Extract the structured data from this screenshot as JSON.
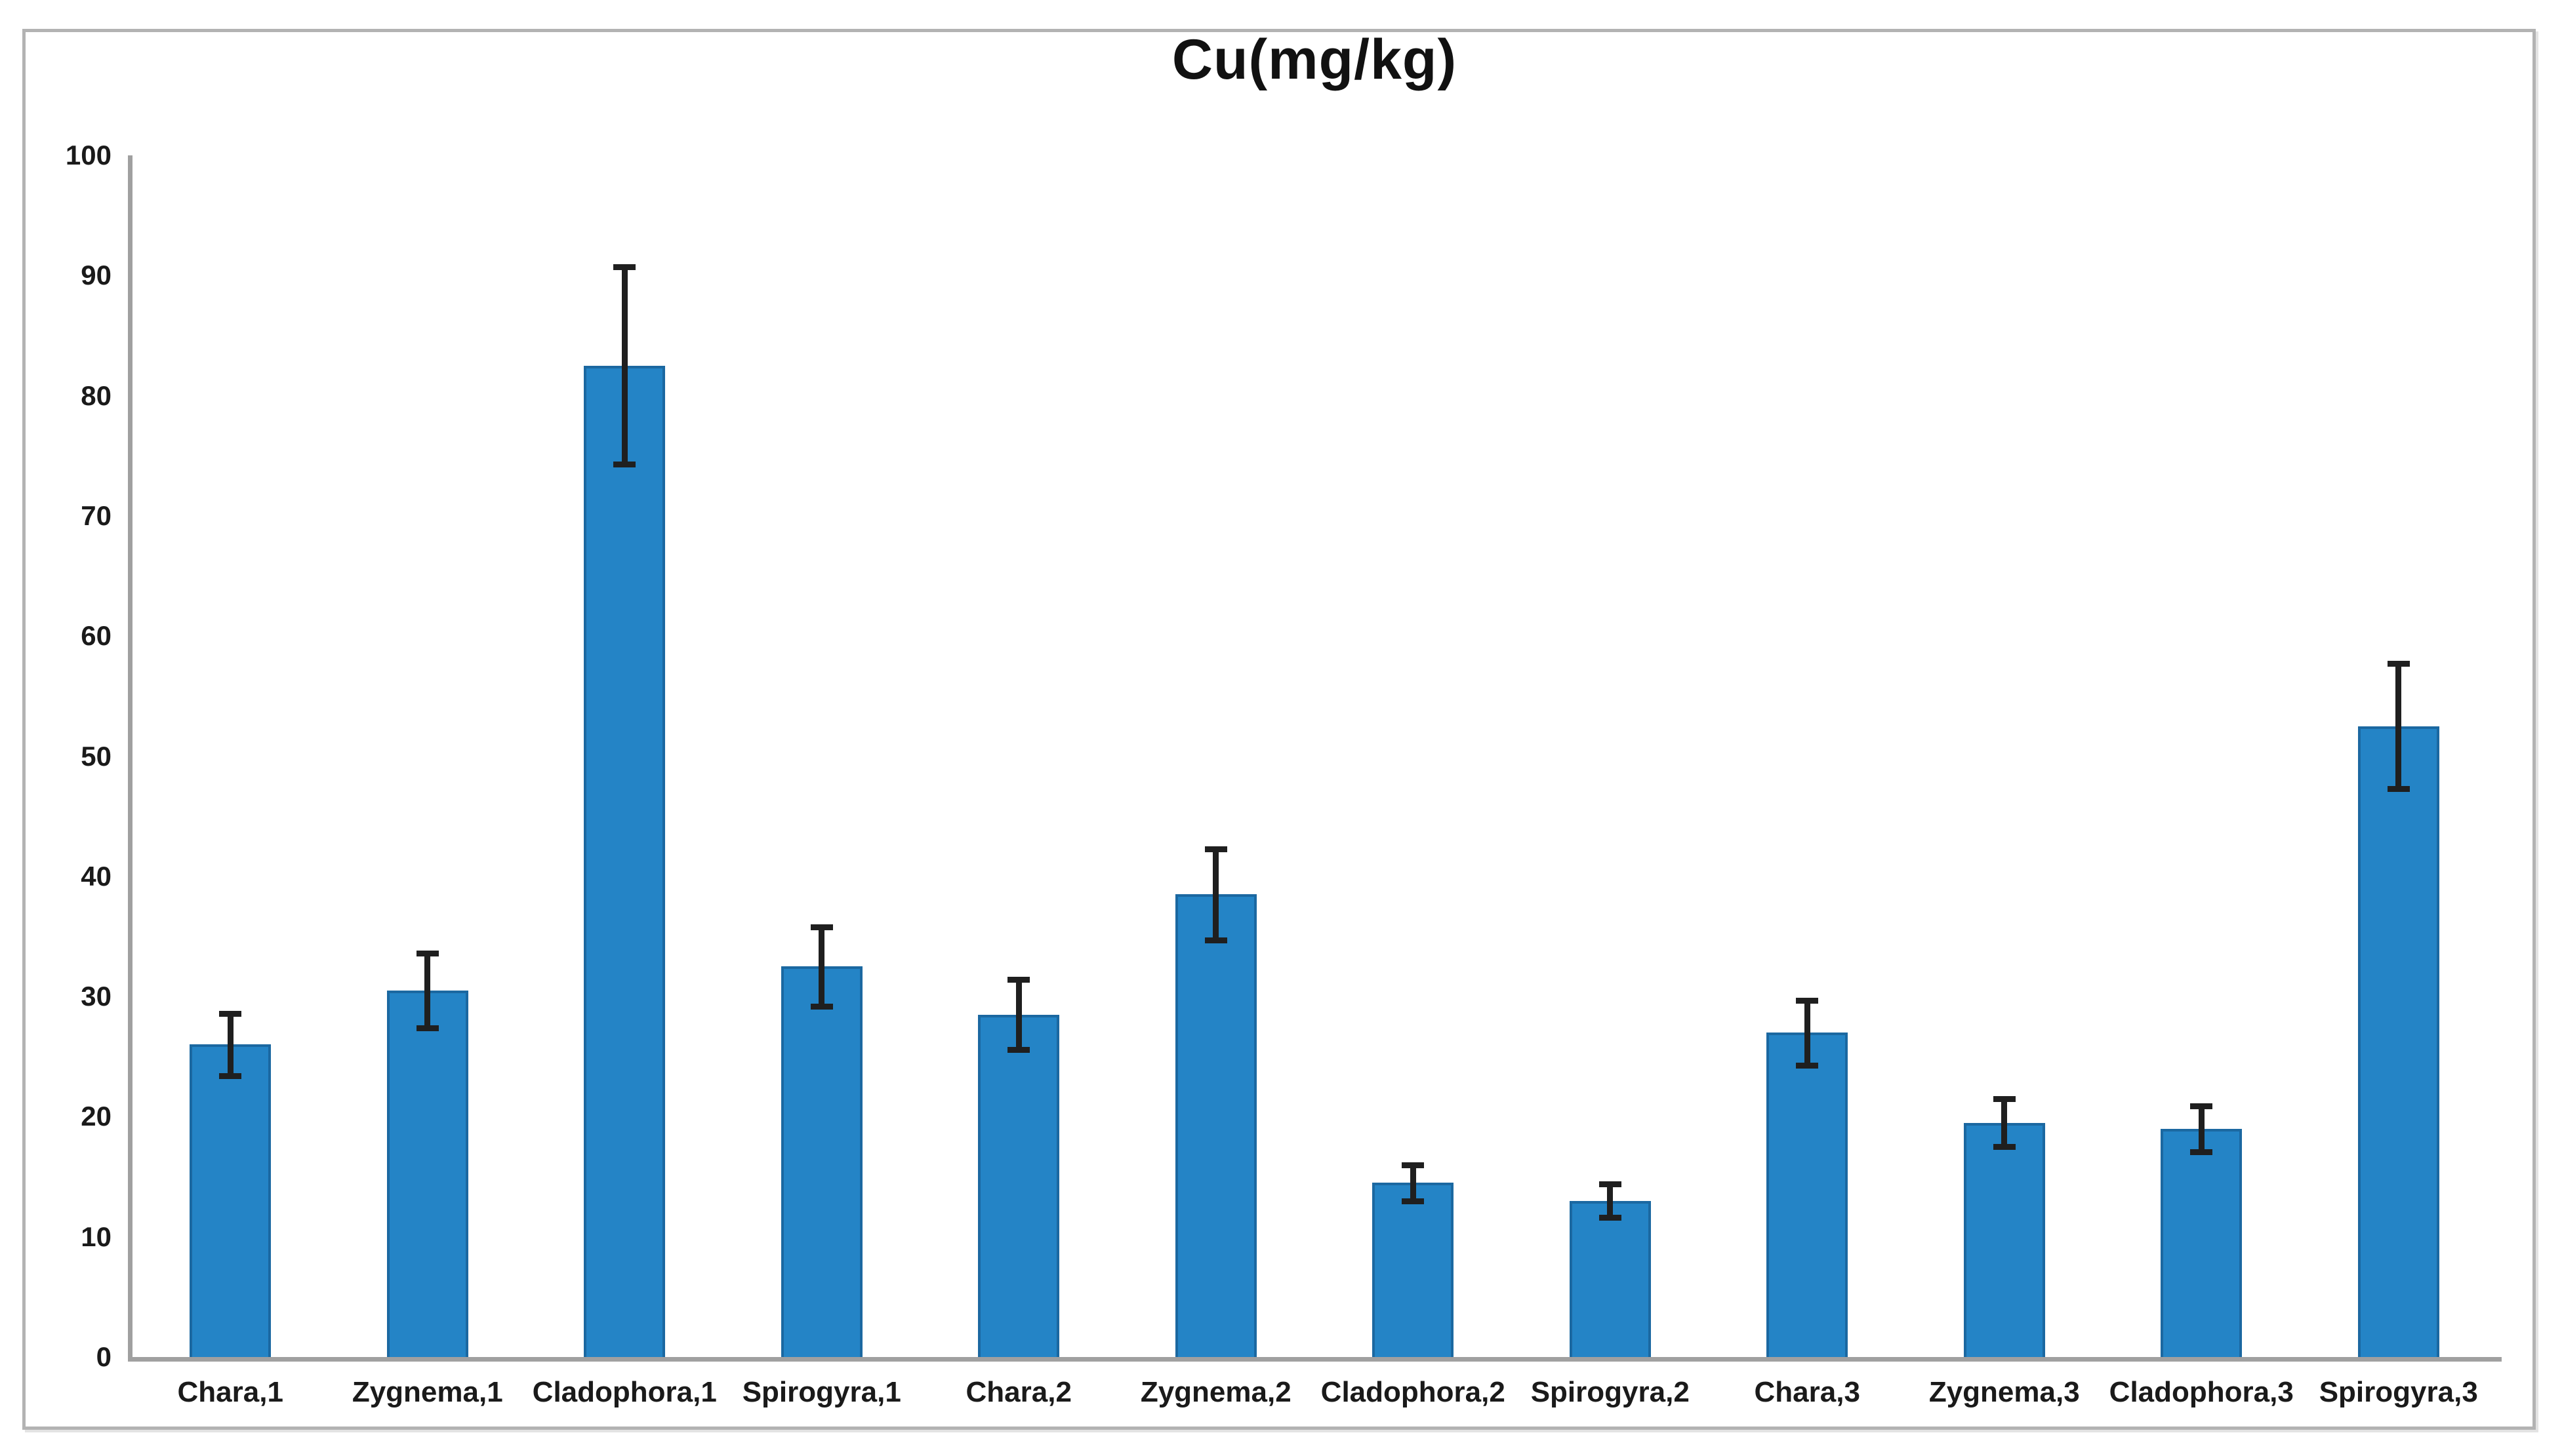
{
  "chart_data": {
    "type": "bar",
    "title": "Cu(mg/kg)",
    "categories": [
      "Chara,1",
      "Zygnema,1",
      "Cladophora,1",
      "Spirogyra,1",
      "Chara,2",
      "Zygnema,2",
      "Cladophora,2",
      "Spirogyra,2",
      "Chara,3",
      "Zygnema,3",
      "Cladophora,3",
      "Spirogyra,3"
    ],
    "values": [
      26,
      30.5,
      82.5,
      32.5,
      28.5,
      38.5,
      14.5,
      13,
      27,
      19.5,
      19,
      52.5
    ],
    "errors": [
      2.6,
      3.1,
      8.2,
      3.3,
      2.9,
      3.8,
      1.5,
      1.4,
      2.7,
      2.0,
      1.9,
      5.2
    ],
    "xlabel": "",
    "ylabel": "",
    "ylim": [
      0,
      100
    ],
    "yticks": [
      0,
      10,
      20,
      30,
      40,
      50,
      60,
      70,
      80,
      90,
      100
    ],
    "grid": false,
    "legend": null,
    "colors": {
      "bar_fill": "#2484C6",
      "bar_border": "#1B68A1",
      "error_bar": "#1f1f1f",
      "axis_line": "#a0a0a0",
      "frame_border": "#b3b3b3",
      "text": "#1a1a1a",
      "background": "#ffffff"
    }
  }
}
